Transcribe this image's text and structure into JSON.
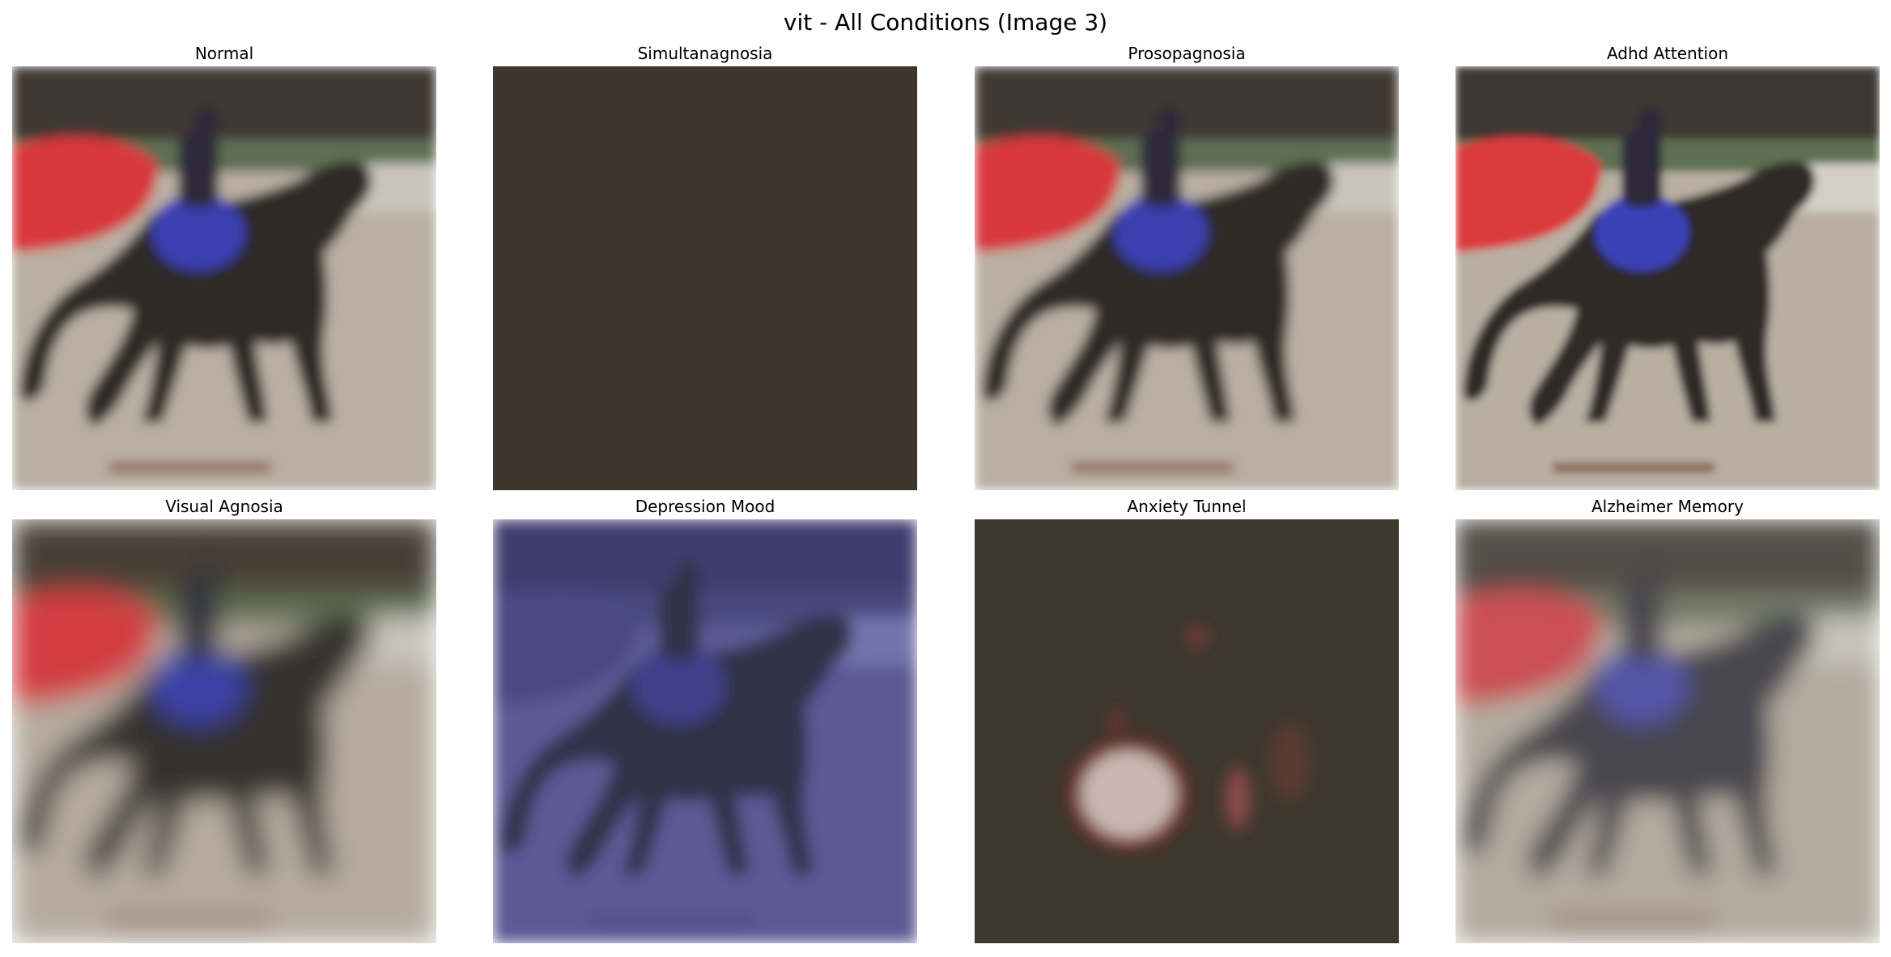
{
  "figure": {
    "title": "vit - All Conditions (Image 3)"
  },
  "panels": [
    {
      "title": "Normal",
      "variant": "normal"
    },
    {
      "title": "Simultanagnosia",
      "variant": "simultanagnosia"
    },
    {
      "title": "Prosopagnosia",
      "variant": "prosopagnosia"
    },
    {
      "title": "Adhd Attention",
      "variant": "adhd"
    },
    {
      "title": "Visual Agnosia",
      "variant": "agnosia"
    },
    {
      "title": "Depression Mood",
      "variant": "depression"
    },
    {
      "title": "Anxiety Tunnel",
      "variant": "anxiety"
    },
    {
      "title": "Alzheimer Memory",
      "variant": "alzheimer"
    }
  ],
  "palette": {
    "ground": "#b9afa2",
    "top_dark": "#3f3832",
    "horse": "#2f2a26",
    "banner_red": "#d8393d",
    "rider_blue": "#3a40b0",
    "flat_fill": "#3e362d",
    "depression_fill": "#4f4c86",
    "anxiety_dark": "#3f382d"
  }
}
